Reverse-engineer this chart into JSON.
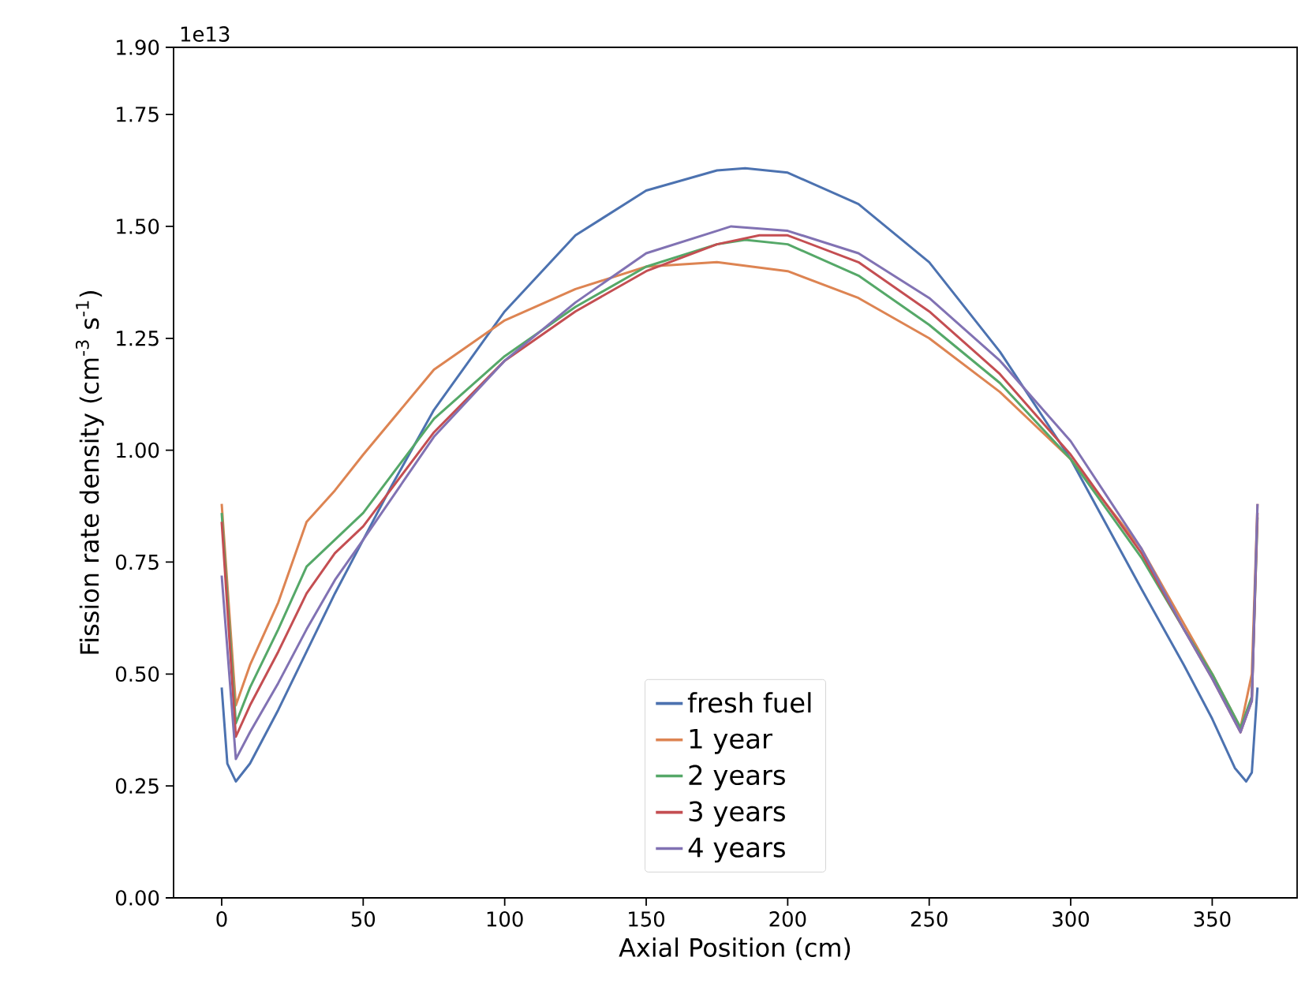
{
  "chart_data": {
    "type": "line",
    "xlabel": "Axial Position (cm)",
    "ylabel": "Fission rate density (cm$^{-3}$ s$^{-1}$)",
    "annotations": [
      "1e13"
    ],
    "xlim": [
      -17,
      380
    ],
    "ylim": [
      0,
      1.9
    ],
    "xticks": [
      0,
      50,
      100,
      150,
      200,
      250,
      300,
      350
    ],
    "yticks": [
      {
        "value": 0,
        "label": "0.00"
      },
      {
        "value": 0.25,
        "label": "0.25"
      },
      {
        "value": 0.5,
        "label": "0.50"
      },
      {
        "value": 0.75,
        "label": "0.75"
      },
      {
        "value": 1,
        "label": "1.00"
      },
      {
        "value": 1.25,
        "label": "1.25"
      },
      {
        "value": 1.5,
        "label": "1.50"
      },
      {
        "value": 1.75,
        "label": "1.75"
      },
      {
        "value": 1.9,
        "label": "1.90"
      }
    ],
    "grid": false,
    "legend": "bottom",
    "marker": "none",
    "line_style": "solid",
    "series": [
      {
        "name": "fresh fuel",
        "color": "#4c72b0",
        "x": [
          0,
          2,
          5,
          10,
          20,
          30,
          40,
          50,
          60,
          75,
          100,
          125,
          150,
          175,
          185,
          200,
          225,
          250,
          275,
          300,
          325,
          340,
          350,
          358,
          362,
          364,
          366
        ],
        "values": [
          0.47,
          0.3,
          0.26,
          0.3,
          0.42,
          0.55,
          0.68,
          0.8,
          0.92,
          1.09,
          1.31,
          1.48,
          1.58,
          1.625,
          1.63,
          1.62,
          1.55,
          1.42,
          1.22,
          0.98,
          0.69,
          0.52,
          0.4,
          0.29,
          0.26,
          0.28,
          0.47
        ]
      },
      {
        "name": "1 year",
        "color": "#dd8452",
        "x": [
          0,
          5,
          10,
          20,
          30,
          40,
          50,
          75,
          100,
          125,
          150,
          175,
          200,
          225,
          250,
          275,
          300,
          325,
          350,
          360,
          364,
          366
        ],
        "values": [
          0.88,
          0.43,
          0.52,
          0.66,
          0.84,
          0.91,
          0.99,
          1.18,
          1.29,
          1.36,
          1.41,
          1.42,
          1.4,
          1.34,
          1.25,
          1.13,
          0.98,
          0.78,
          0.5,
          0.38,
          0.5,
          0.88
        ]
      },
      {
        "name": "2 years",
        "color": "#55a868",
        "x": [
          0,
          5,
          10,
          20,
          30,
          40,
          50,
          75,
          100,
          125,
          150,
          175,
          185,
          200,
          225,
          250,
          275,
          300,
          325,
          340,
          350,
          360,
          364,
          366
        ],
        "values": [
          0.86,
          0.39,
          0.47,
          0.6,
          0.74,
          0.8,
          0.86,
          1.07,
          1.21,
          1.32,
          1.41,
          1.46,
          1.47,
          1.46,
          1.39,
          1.28,
          1.15,
          0.98,
          0.76,
          0.6,
          0.5,
          0.38,
          0.45,
          0.85
        ]
      },
      {
        "name": "3 years",
        "color": "#c44e52",
        "x": [
          0,
          5,
          10,
          20,
          30,
          40,
          50,
          75,
          100,
          125,
          150,
          175,
          190,
          200,
          225,
          250,
          275,
          300,
          325,
          340,
          350,
          360,
          364,
          366
        ],
        "values": [
          0.84,
          0.36,
          0.43,
          0.55,
          0.68,
          0.77,
          0.83,
          1.04,
          1.2,
          1.31,
          1.4,
          1.46,
          1.48,
          1.48,
          1.42,
          1.31,
          1.17,
          0.99,
          0.77,
          0.6,
          0.49,
          0.37,
          0.44,
          0.86
        ]
      },
      {
        "name": "4 years",
        "color": "#8172b3",
        "x": [
          0,
          5,
          10,
          20,
          30,
          40,
          50,
          75,
          100,
          125,
          150,
          175,
          180,
          200,
          225,
          250,
          275,
          300,
          325,
          340,
          350,
          360,
          364,
          366
        ],
        "values": [
          0.72,
          0.31,
          0.37,
          0.48,
          0.6,
          0.71,
          0.8,
          1.03,
          1.2,
          1.33,
          1.44,
          1.49,
          1.5,
          1.49,
          1.44,
          1.34,
          1.2,
          1.02,
          0.78,
          0.6,
          0.49,
          0.37,
          0.44,
          0.88
        ]
      }
    ]
  }
}
